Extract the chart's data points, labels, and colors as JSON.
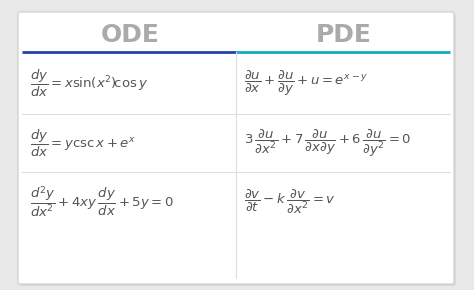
{
  "title_ode": "ODE",
  "title_pde": "PDE",
  "title_color": "#aaaaaa",
  "title_fontsize": 18,
  "bg_color": "#e8e8e8",
  "card_bg": "#ffffff",
  "card_border": "#cccccc",
  "line_color1": "#2244aa",
  "line_color2": "#11aabb",
  "eq_color": "#555555",
  "eq_fontsize": 9.5,
  "sep_color": "#dddddd",
  "figsize": [
    4.74,
    2.9
  ],
  "dpi": 100
}
